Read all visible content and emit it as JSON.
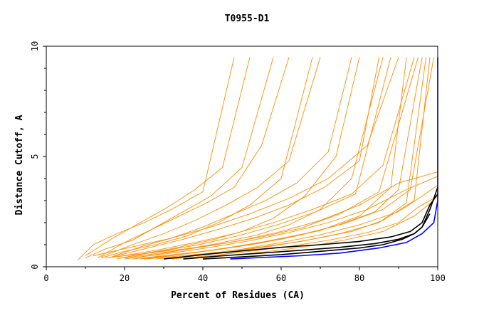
{
  "chart_data": {
    "type": "line",
    "title": "T0955-D1",
    "xlabel": "Percent of Residues (CA)",
    "ylabel": "Distance Cutoff, A",
    "xlim": [
      0,
      100
    ],
    "ylim": [
      0,
      10
    ],
    "x_ticks": [
      "0",
      "20",
      "40",
      "60",
      "80",
      "100"
    ],
    "y_ticks": [
      "0",
      "5",
      "10"
    ],
    "grid": false,
    "colors": {
      "other_models": "#ff8c00",
      "highlight_models": "#000000",
      "best_model": "#0000ff",
      "frame": "#000000"
    },
    "series": [
      {
        "role": "best_model",
        "x": [
          47,
          55,
          65,
          75,
          85,
          92,
          96,
          99,
          100,
          100
        ],
        "y": [
          0.35,
          0.42,
          0.5,
          0.62,
          0.85,
          1.1,
          1.5,
          2.0,
          3.0,
          9.5
        ]
      },
      {
        "role": "highlight_models",
        "x": [
          30,
          40,
          50,
          60,
          70,
          80,
          88,
          93,
          96,
          98,
          100
        ],
        "y": [
          0.35,
          0.55,
          0.72,
          0.88,
          1.0,
          1.15,
          1.35,
          1.6,
          2.0,
          2.8,
          3.3
        ]
      },
      {
        "role": "highlight_models",
        "x": [
          35,
          45,
          55,
          65,
          75,
          84,
          90,
          94,
          96,
          98,
          100
        ],
        "y": [
          0.35,
          0.5,
          0.62,
          0.75,
          0.88,
          1.05,
          1.25,
          1.5,
          1.8,
          2.6,
          3.6
        ]
      },
      {
        "role": "highlight_models",
        "x": [
          40,
          50,
          60,
          70,
          80,
          86,
          91,
          94,
          96,
          98
        ],
        "y": [
          0.35,
          0.45,
          0.55,
          0.7,
          0.85,
          1.0,
          1.25,
          1.5,
          1.8,
          2.4
        ]
      },
      {
        "role": "other_models",
        "x": [
          8,
          12,
          18,
          25,
          32,
          40,
          48
        ],
        "y": [
          0.3,
          1.0,
          1.5,
          2.0,
          2.6,
          3.4,
          9.5
        ]
      },
      {
        "role": "other_models",
        "x": [
          10,
          15,
          22,
          28,
          35,
          42,
          50,
          58
        ],
        "y": [
          0.4,
          0.8,
          1.2,
          1.8,
          2.5,
          3.2,
          4.5,
          9.5
        ]
      },
      {
        "role": "other_models",
        "x": [
          14,
          20,
          28,
          36,
          44,
          52,
          60,
          68
        ],
        "y": [
          0.4,
          0.7,
          1.0,
          1.4,
          2.0,
          2.8,
          4.0,
          9.5
        ]
      },
      {
        "role": "other_models",
        "x": [
          18,
          25,
          33,
          42,
          50,
          58,
          66,
          74,
          80
        ],
        "y": [
          0.35,
          0.6,
          0.85,
          1.2,
          1.6,
          2.2,
          3.2,
          5.0,
          9.5
        ]
      },
      {
        "role": "other_models",
        "x": [
          20,
          28,
          36,
          45,
          54,
          62,
          70,
          78,
          86
        ],
        "y": [
          0.35,
          0.55,
          0.8,
          1.1,
          1.45,
          1.9,
          2.6,
          4.0,
          9.5
        ]
      },
      {
        "role": "other_models",
        "x": [
          22,
          30,
          40,
          50,
          60,
          70,
          80,
          88,
          92
        ],
        "y": [
          0.35,
          0.5,
          0.7,
          0.95,
          1.25,
          1.65,
          2.3,
          3.6,
          9.5
        ]
      },
      {
        "role": "other_models",
        "x": [
          15,
          25,
          35,
          45,
          55,
          65,
          75,
          85,
          95
        ],
        "y": [
          0.4,
          0.6,
          0.8,
          1.05,
          1.35,
          1.75,
          2.4,
          3.4,
          9.5
        ]
      },
      {
        "role": "other_models",
        "x": [
          25,
          35,
          45,
          55,
          65,
          75,
          85,
          92,
          97
        ],
        "y": [
          0.35,
          0.5,
          0.68,
          0.9,
          1.15,
          1.5,
          2.0,
          2.9,
          9.5
        ]
      },
      {
        "role": "other_models",
        "x": [
          12,
          22,
          32,
          42,
          52,
          62,
          72,
          82,
          90
        ],
        "y": [
          0.5,
          0.9,
          1.3,
          1.8,
          2.4,
          3.1,
          4.0,
          5.5,
          9.5
        ]
      },
      {
        "role": "other_models",
        "x": [
          18,
          28,
          38,
          48,
          58,
          68,
          78,
          86,
          94
        ],
        "y": [
          0.45,
          0.75,
          1.1,
          1.5,
          2.0,
          2.6,
          3.3,
          4.6,
          9.5
        ]
      },
      {
        "role": "other_models",
        "x": [
          28,
          38,
          48,
          58,
          68,
          78,
          86,
          94,
          98
        ],
        "y": [
          0.35,
          0.5,
          0.7,
          0.95,
          1.25,
          1.6,
          2.1,
          3.0,
          9.5
        ]
      },
      {
        "role": "other_models",
        "x": [
          13,
          20,
          27,
          34,
          41,
          48,
          55,
          62
        ],
        "y": [
          0.4,
          1.1,
          1.7,
          2.3,
          2.9,
          3.6,
          5.5,
          9.5
        ]
      },
      {
        "role": "other_models",
        "x": [
          16,
          24,
          32,
          40,
          48,
          56,
          64,
          72,
          78
        ],
        "y": [
          0.4,
          0.9,
          1.3,
          1.8,
          2.4,
          3.0,
          3.8,
          5.2,
          9.5
        ]
      },
      {
        "role": "other_models",
        "x": [
          24,
          34,
          44,
          54,
          64,
          74,
          84,
          90,
          96
        ],
        "y": [
          0.35,
          0.55,
          0.78,
          1.05,
          1.4,
          1.85,
          2.5,
          3.5,
          9.5
        ]
      },
      {
        "role": "other_models",
        "x": [
          20,
          30,
          40,
          50,
          60,
          70,
          80,
          90,
          100
        ],
        "y": [
          0.4,
          0.65,
          0.9,
          1.2,
          1.6,
          2.1,
          2.8,
          3.8,
          4.3
        ]
      },
      {
        "role": "other_models",
        "x": [
          30,
          40,
          50,
          60,
          70,
          80,
          90,
          96,
          100
        ],
        "y": [
          0.35,
          0.55,
          0.8,
          1.1,
          1.45,
          1.9,
          2.5,
          3.2,
          3.7
        ]
      },
      {
        "role": "other_models",
        "x": [
          10,
          17,
          24,
          31,
          38,
          45,
          52
        ],
        "y": [
          0.5,
          1.3,
          2.0,
          2.7,
          3.5,
          4.5,
          9.5
        ]
      },
      {
        "role": "other_models",
        "x": [
          26,
          36,
          46,
          56,
          66,
          76,
          86,
          93,
          99
        ],
        "y": [
          0.35,
          0.6,
          0.85,
          1.15,
          1.5,
          1.95,
          2.6,
          3.5,
          9.5
        ]
      },
      {
        "role": "other_models",
        "x": [
          32,
          42,
          52,
          62,
          72,
          82,
          90,
          95,
          100
        ],
        "y": [
          0.35,
          0.5,
          0.7,
          0.92,
          1.2,
          1.55,
          2.0,
          2.7,
          3.2
        ]
      },
      {
        "role": "other_models",
        "x": [
          14,
          22,
          30,
          38,
          46,
          54,
          62,
          70
        ],
        "y": [
          0.45,
          1.0,
          1.5,
          2.1,
          2.8,
          3.6,
          4.8,
          9.5
        ]
      },
      {
        "role": "other_models",
        "x": [
          36,
          46,
          56,
          66,
          76,
          86,
          94,
          99
        ],
        "y": [
          0.35,
          0.5,
          0.68,
          0.9,
          1.2,
          1.6,
          2.3,
          3.0
        ]
      },
      {
        "role": "other_models",
        "x": [
          19,
          29,
          39,
          49,
          59,
          69,
          79,
          88
        ],
        "y": [
          0.4,
          0.7,
          1.0,
          1.4,
          1.9,
          2.5,
          3.3,
          9.5
        ]
      },
      {
        "role": "other_models",
        "x": [
          22,
          32,
          42,
          52,
          62,
          72,
          82,
          92,
          100
        ],
        "y": [
          0.4,
          0.62,
          0.88,
          1.18,
          1.55,
          2.0,
          2.6,
          3.5,
          4.1
        ]
      },
      {
        "role": "other_models",
        "x": [
          17,
          26,
          35,
          44,
          53,
          62,
          71,
          80,
          85
        ],
        "y": [
          0.45,
          0.85,
          1.25,
          1.7,
          2.2,
          2.8,
          3.6,
          4.8,
          9.5
        ]
      }
    ]
  }
}
